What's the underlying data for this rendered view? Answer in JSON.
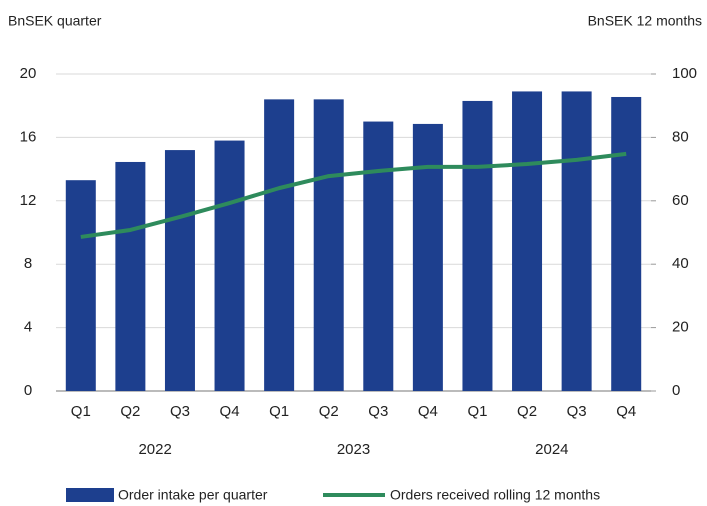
{
  "chart_data": {
    "type": "bar_line",
    "y_label": "BnSEK quarter",
    "y2_label": "BnSEK  12 months",
    "categories": [
      "Q1",
      "Q2",
      "Q3",
      "Q4",
      "Q1",
      "Q2",
      "Q3",
      "Q4",
      "Q1",
      "Q2",
      "Q3",
      "Q4"
    ],
    "category_groups": [
      "2022",
      "2023",
      "2024"
    ],
    "series": [
      {
        "name": "Order intake per quarter",
        "type": "bar",
        "color": "#1d3f8e",
        "values": [
          13.3,
          14.45,
          15.2,
          15.8,
          18.4,
          18.4,
          17.0,
          16.85,
          18.3,
          18.9,
          18.9,
          18.55
        ]
      },
      {
        "name": "Orders received rolling 12 months",
        "type": "line",
        "axis": "y2",
        "color": "#2e8b5c",
        "values": [
          48.6,
          50.8,
          54.9,
          59.3,
          64.0,
          67.8,
          69.4,
          70.7,
          70.7,
          71.6,
          72.9,
          74.8
        ]
      }
    ],
    "ylim": [
      0,
      20
    ],
    "yticks": [
      0,
      4,
      8,
      12,
      16,
      20
    ],
    "y2lim": [
      0,
      100
    ],
    "y2ticks": [
      0,
      20,
      40,
      60,
      80,
      100
    ],
    "grid": true
  }
}
